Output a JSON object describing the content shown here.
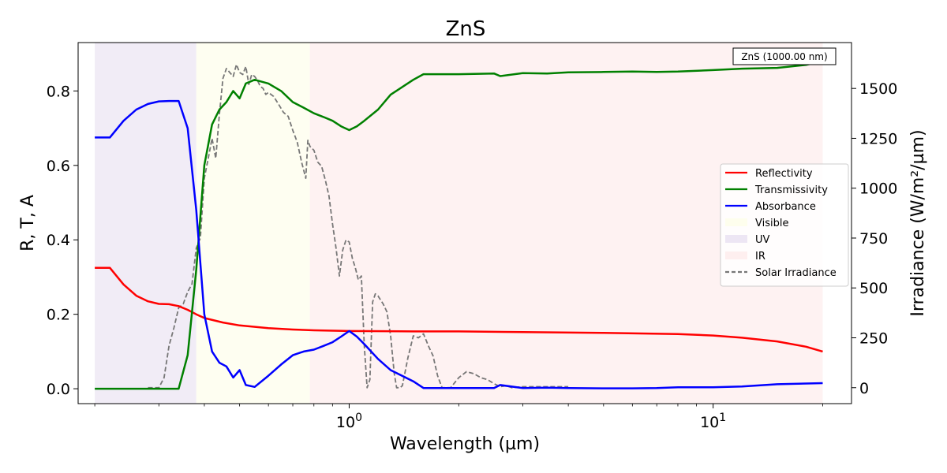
{
  "chart_data": {
    "type": "line",
    "title": "ZnS",
    "xlabel": "Wavelength (µm)",
    "ylabel": "R, T, A",
    "ylabel_right": "Irradiance (W/m²/µm)",
    "x_scale": "log",
    "xlim": [
      0.18,
      24
    ],
    "ylim": [
      -0.04,
      0.93
    ],
    "ylim_right": [
      -80,
      1730
    ],
    "x_tick_values": [
      1,
      10
    ],
    "x_tick_labels": [
      "10^0",
      "10^1"
    ],
    "y_tick_values": [
      0.0,
      0.2,
      0.4,
      0.6,
      0.8
    ],
    "y_tick_labels": [
      "0.0",
      "0.2",
      "0.4",
      "0.6",
      "0.8"
    ],
    "y_right_tick_values": [
      0,
      250,
      500,
      750,
      1000,
      1250,
      1500
    ],
    "y_right_tick_labels": [
      "0",
      "250",
      "500",
      "750",
      "1000",
      "1250",
      "1500"
    ],
    "annotation": "ZnS (1000.00 nm)",
    "grid": false,
    "legend_placement": "center-right",
    "bands": [
      {
        "name": "UV",
        "x": [
          0.2,
          0.38
        ],
        "color": "#e6dcef"
      },
      {
        "name": "Visible",
        "x": [
          0.38,
          0.78
        ],
        "color": "#fdfde6"
      },
      {
        "name": "IR",
        "x": [
          0.78,
          20
        ],
        "color": "#fde8e8"
      }
    ],
    "series": [
      {
        "name": "Reflectivity",
        "color": "#ff0000",
        "axis": "left",
        "style": "solid",
        "x": [
          0.2,
          0.22,
          0.24,
          0.26,
          0.28,
          0.3,
          0.32,
          0.34,
          0.36,
          0.38,
          0.4,
          0.45,
          0.5,
          0.6,
          0.7,
          0.8,
          1.0,
          1.5,
          2,
          3,
          5,
          8,
          10,
          12,
          15,
          18,
          20
        ],
        "y": [
          0.325,
          0.325,
          0.28,
          0.25,
          0.235,
          0.228,
          0.227,
          0.222,
          0.212,
          0.2,
          0.19,
          0.178,
          0.17,
          0.163,
          0.159,
          0.157,
          0.155,
          0.154,
          0.154,
          0.152,
          0.15,
          0.147,
          0.143,
          0.137,
          0.127,
          0.113,
          0.1
        ]
      },
      {
        "name": "Transmissivity",
        "color": "#008000",
        "axis": "left",
        "style": "solid",
        "x": [
          0.2,
          0.22,
          0.24,
          0.26,
          0.28,
          0.3,
          0.32,
          0.34,
          0.36,
          0.38,
          0.4,
          0.42,
          0.44,
          0.46,
          0.48,
          0.5,
          0.52,
          0.55,
          0.6,
          0.65,
          0.7,
          0.75,
          0.8,
          0.85,
          0.9,
          0.95,
          1.0,
          1.05,
          1.1,
          1.2,
          1.3,
          1.5,
          1.6,
          2.0,
          2.5,
          2.6,
          3,
          3.5,
          4,
          5,
          6,
          7,
          8,
          10,
          12,
          15,
          18,
          20
        ],
        "y": [
          0.0,
          0.0,
          0.0,
          0.0,
          0.0,
          0.0,
          0.0,
          0.0,
          0.09,
          0.32,
          0.6,
          0.71,
          0.75,
          0.77,
          0.8,
          0.78,
          0.82,
          0.83,
          0.82,
          0.8,
          0.77,
          0.755,
          0.74,
          0.73,
          0.72,
          0.705,
          0.695,
          0.705,
          0.72,
          0.75,
          0.79,
          0.83,
          0.845,
          0.845,
          0.847,
          0.84,
          0.848,
          0.847,
          0.85,
          0.851,
          0.852,
          0.851,
          0.852,
          0.856,
          0.86,
          0.862,
          0.87,
          0.88
        ]
      },
      {
        "name": "Absorbance",
        "color": "#0000ff",
        "axis": "left",
        "style": "solid",
        "x": [
          0.2,
          0.22,
          0.24,
          0.26,
          0.28,
          0.3,
          0.32,
          0.34,
          0.36,
          0.38,
          0.4,
          0.42,
          0.44,
          0.46,
          0.48,
          0.5,
          0.52,
          0.55,
          0.6,
          0.65,
          0.7,
          0.75,
          0.8,
          0.85,
          0.9,
          0.95,
          1.0,
          1.05,
          1.1,
          1.2,
          1.3,
          1.5,
          1.6,
          2.0,
          2.5,
          2.6,
          3,
          3.5,
          4,
          5,
          6,
          7,
          8,
          10,
          12,
          15,
          18,
          20
        ],
        "y": [
          0.675,
          0.675,
          0.72,
          0.75,
          0.765,
          0.772,
          0.773,
          0.773,
          0.7,
          0.48,
          0.2,
          0.1,
          0.07,
          0.06,
          0.03,
          0.05,
          0.01,
          0.005,
          0.035,
          0.065,
          0.09,
          0.1,
          0.105,
          0.115,
          0.125,
          0.14,
          0.155,
          0.14,
          0.12,
          0.08,
          0.05,
          0.02,
          0.002,
          0.002,
          0.002,
          0.01,
          0.002,
          0.003,
          0.002,
          0.001,
          0.001,
          0.002,
          0.004,
          0.004,
          0.006,
          0.012,
          0.014,
          0.015
        ]
      },
      {
        "name": "Solar Irradiance",
        "color": "#777777",
        "axis": "right",
        "style": "dashed",
        "x": [
          0.28,
          0.3,
          0.31,
          0.32,
          0.33,
          0.34,
          0.35,
          0.36,
          0.37,
          0.38,
          0.39,
          0.4,
          0.41,
          0.42,
          0.43,
          0.44,
          0.45,
          0.46,
          0.47,
          0.48,
          0.49,
          0.5,
          0.51,
          0.52,
          0.53,
          0.54,
          0.55,
          0.56,
          0.57,
          0.58,
          0.59,
          0.6,
          0.62,
          0.64,
          0.66,
          0.68,
          0.7,
          0.72,
          0.74,
          0.76,
          0.77,
          0.78,
          0.8,
          0.82,
          0.84,
          0.86,
          0.88,
          0.9,
          0.92,
          0.94,
          0.96,
          0.98,
          1.0,
          1.02,
          1.04,
          1.06,
          1.08,
          1.1,
          1.12,
          1.14,
          1.16,
          1.18,
          1.2,
          1.24,
          1.27,
          1.3,
          1.33,
          1.35,
          1.38,
          1.4,
          1.45,
          1.5,
          1.55,
          1.6,
          1.65,
          1.7,
          1.75,
          1.8,
          1.85,
          1.9,
          2.0,
          2.1,
          2.2,
          2.3,
          2.4,
          2.5,
          2.6,
          2.7,
          2.8,
          3.0,
          3.5,
          4.0
        ],
        "y": [
          0,
          0,
          50,
          210,
          300,
          400,
          420,
          480,
          520,
          700,
          750,
          1050,
          1150,
          1250,
          1150,
          1370,
          1550,
          1600,
          1580,
          1560,
          1620,
          1580,
          1570,
          1610,
          1520,
          1570,
          1560,
          1540,
          1510,
          1500,
          1470,
          1480,
          1460,
          1420,
          1380,
          1360,
          1290,
          1230,
          1130,
          1050,
          1240,
          1210,
          1190,
          1130,
          1110,
          1040,
          960,
          820,
          700,
          560,
          690,
          740,
          730,
          650,
          600,
          540,
          560,
          210,
          0,
          40,
          430,
          470,
          460,
          420,
          380,
          260,
          70,
          0,
          0,
          10,
          150,
          260,
          250,
          270,
          210,
          160,
          60,
          0,
          0,
          0,
          50,
          80,
          70,
          50,
          40,
          20,
          5,
          10,
          0,
          5,
          5,
          5
        ]
      }
    ],
    "legend": [
      "Reflectivity",
      "Transmissivity",
      "Absorbance",
      "Visible",
      "UV",
      "IR",
      "Solar Irradiance"
    ]
  }
}
